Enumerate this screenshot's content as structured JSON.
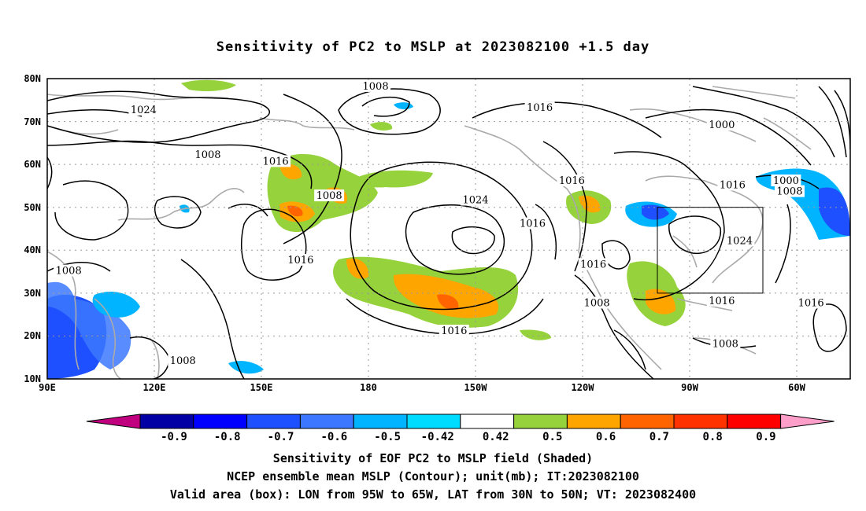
{
  "title": "Sensitivity of PC2 to MSLP at 2023082100 +1.5 day",
  "axes": {
    "lat_ticks": [
      "80N",
      "70N",
      "60N",
      "50N",
      "40N",
      "30N",
      "20N",
      "10N"
    ],
    "lon_ticks": [
      "90E",
      "120E",
      "150E",
      "180",
      "150W",
      "120W",
      "90W",
      "60W"
    ]
  },
  "contour_labels": [
    {
      "text": "1008",
      "lon": 182,
      "lat": 78
    },
    {
      "text": "1024",
      "lon": 117,
      "lat": 72.5
    },
    {
      "text": "1016",
      "lon": 228,
      "lat": 73
    },
    {
      "text": "1000",
      "lon": 279,
      "lat": 69
    },
    {
      "text": "1008",
      "lon": 135,
      "lat": 62
    },
    {
      "text": "1016",
      "lon": 154,
      "lat": 60.5
    },
    {
      "text": "1016",
      "lon": 237,
      "lat": 56
    },
    {
      "text": "1016",
      "lon": 282,
      "lat": 55
    },
    {
      "text": "1000",
      "lon": 297,
      "lat": 56
    },
    {
      "text": "1008",
      "lon": 298,
      "lat": 53.5
    },
    {
      "text": "1008",
      "lon": 169,
      "lat": 52.5
    },
    {
      "text": "1024",
      "lon": 210,
      "lat": 51.5
    },
    {
      "text": "1016",
      "lon": 226,
      "lat": 46
    },
    {
      "text": "1024",
      "lon": 284,
      "lat": 42
    },
    {
      "text": "1016",
      "lon": 161,
      "lat": 37.5
    },
    {
      "text": "1016",
      "lon": 243,
      "lat": 36.5
    },
    {
      "text": "1008",
      "lon": 96,
      "lat": 35
    },
    {
      "text": "1008",
      "lon": 244,
      "lat": 27.5
    },
    {
      "text": "1016",
      "lon": 279,
      "lat": 28
    },
    {
      "text": "1016",
      "lon": 304,
      "lat": 27.5
    },
    {
      "text": "1016",
      "lon": 204,
      "lat": 21
    },
    {
      "text": "1008",
      "lon": 280,
      "lat": 18
    },
    {
      "text": "1008",
      "lon": 128,
      "lat": 14
    }
  ],
  "colorbar": {
    "labels": [
      "-0.9",
      "-0.8",
      "-0.7",
      "-0.6",
      "-0.5",
      "-0.42",
      "0.42",
      "0.5",
      "0.6",
      "0.7",
      "0.8",
      "0.9"
    ],
    "colors": [
      "#c0007f",
      "#0000a5",
      "#0000ff",
      "#1e50ff",
      "#3c78ff",
      "#00b4ff",
      "#00dcff",
      "#ffffff",
      "#96d23c",
      "#ffa500",
      "#ff6400",
      "#ff3200",
      "#ff0000",
      "#ff9ec8"
    ]
  },
  "captions": [
    "Sensitivity of EOF PC2 to MSLP field (Shaded)",
    "NCEP ensemble mean MSLP (Contour); unit(mb); IT:2023082100",
    "Valid area (box): LON from 95W to 65W, LAT from 30N to 50N; VT: 2023082400"
  ],
  "chart_data": {
    "type": "heatmap",
    "title": "Sensitivity of PC2 to MSLP at 2023082100 +1.5 day",
    "lon_range": [
      "90E",
      "45W"
    ],
    "lat_range": [
      "10N",
      "80N"
    ],
    "grid": true,
    "valid_box": {
      "lon": [
        "95W",
        "65W"
      ],
      "lat": [
        "30N",
        "50N"
      ]
    },
    "shaded_levels": [
      -0.9,
      -0.8,
      -0.7,
      -0.6,
      -0.5,
      -0.42,
      0.42,
      0.5,
      0.6,
      0.7,
      0.8,
      0.9
    ],
    "contour_levels_mb": [
      1000,
      1008,
      1016,
      1024
    ]
  }
}
